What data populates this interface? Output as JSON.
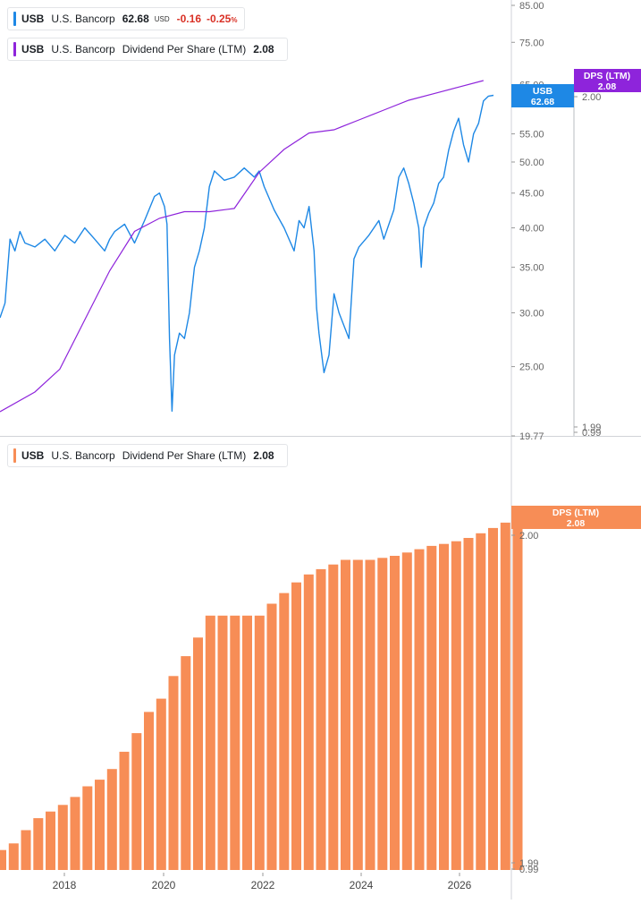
{
  "colors": {
    "price": "#1e88e5",
    "dps_line": "#8e24db",
    "dps_bar": "#f78d56",
    "negative": "#d93025",
    "axis": "#666666"
  },
  "legends": {
    "price": {
      "ticker": "USB",
      "name": "U.S. Bancorp",
      "value": "62.68",
      "currency": "USD",
      "change": "-0.16",
      "change_pct": "-0.25",
      "pct_sign": "%"
    },
    "dps_top": {
      "ticker": "USB",
      "name": "U.S. Bancorp",
      "metric": "Dividend Per Share (LTM)",
      "value": "2.08"
    },
    "dps_bottom": {
      "ticker": "USB",
      "name": "U.S. Bancorp",
      "metric": "Dividend Per Share (LTM)",
      "value": "2.08"
    }
  },
  "badges": {
    "price": {
      "title": "USB",
      "value": "62.68"
    },
    "dps_top": {
      "title": "DPS (LTM)",
      "value": "2.08"
    },
    "dps_bottom": {
      "title": "DPS (LTM)",
      "value": "2.08"
    }
  },
  "chart_data": [
    {
      "type": "line",
      "title": "",
      "axis": "log",
      "y_range": [
        19.77,
        85.0
      ],
      "y_ticks": [
        "85.00",
        "75.00",
        "65.00",
        "55.00",
        "50.00",
        "45.00",
        "40.00",
        "35.00",
        "30.00",
        "25.00",
        "19.77"
      ],
      "secondary_ticks": [
        "2.00",
        "1.99",
        "0.99"
      ],
      "series": [
        {
          "name": "USB",
          "x": [
            2016.8,
            2016.9,
            2017.0,
            2017.1,
            2017.2,
            2017.3,
            2017.5,
            2017.7,
            2017.9,
            2018.0,
            2018.1,
            2018.3,
            2018.5,
            2018.7,
            2018.9,
            2019.0,
            2019.1,
            2019.3,
            2019.5,
            2019.7,
            2019.9,
            2020.0,
            2020.1,
            2020.15,
            2020.2,
            2020.25,
            2020.3,
            2020.4,
            2020.5,
            2020.6,
            2020.7,
            2020.8,
            2020.9,
            2021.0,
            2021.1,
            2021.3,
            2021.5,
            2021.7,
            2021.9,
            2022.0,
            2022.1,
            2022.3,
            2022.5,
            2022.7,
            2022.8,
            2022.9,
            2023.0,
            2023.1,
            2023.15,
            2023.2,
            2023.3,
            2023.4,
            2023.5,
            2023.6,
            2023.8,
            2023.9,
            2024.0,
            2024.2,
            2024.4,
            2024.5,
            2024.7,
            2024.8,
            2024.9,
            2025.0,
            2025.1,
            2025.2,
            2025.25,
            2025.3,
            2025.4,
            2025.5,
            2025.6,
            2025.7,
            2025.8,
            2025.9,
            2026.0,
            2026.1,
            2026.2,
            2026.3,
            2026.4,
            2026.5,
            2026.6,
            2026.7
          ],
          "values": [
            29.5,
            31.0,
            38.5,
            37.0,
            39.5,
            38.0,
            37.5,
            38.5,
            37.0,
            38.0,
            39.0,
            38.0,
            40.0,
            38.5,
            37.0,
            38.5,
            39.5,
            40.5,
            38.0,
            41.0,
            44.5,
            45.0,
            43.0,
            40.5,
            27.5,
            21.5,
            26.0,
            28.0,
            27.5,
            30.0,
            35.0,
            37.0,
            40.0,
            46.0,
            48.5,
            47.0,
            47.5,
            49.0,
            47.5,
            48.5,
            46.0,
            42.5,
            40.0,
            37.0,
            41.0,
            40.0,
            43.0,
            37.0,
            30.5,
            28.0,
            24.5,
            26.0,
            32.0,
            30.0,
            27.5,
            36.0,
            37.5,
            39.0,
            41.0,
            38.5,
            42.5,
            47.5,
            49.0,
            46.5,
            43.5,
            40.0,
            35.0,
            40.0,
            42.0,
            43.5,
            46.5,
            47.5,
            52.0,
            55.5,
            58.0,
            53.0,
            50.0,
            55.0,
            57.0,
            61.5,
            62.5,
            62.68
          ]
        },
        {
          "name": "DPS (LTM)",
          "x": [
            2016.8,
            2017.5,
            2018.0,
            2018.5,
            2019.0,
            2019.5,
            2020.0,
            2020.5,
            2021.0,
            2021.5,
            2022.0,
            2022.5,
            2023.0,
            2023.5,
            2024.0,
            2024.5,
            2025.0,
            2025.5,
            2026.0,
            2026.5
          ],
          "values": [
            1.07,
            1.13,
            1.2,
            1.35,
            1.5,
            1.62,
            1.66,
            1.68,
            1.68,
            1.69,
            1.8,
            1.87,
            1.92,
            1.93,
            1.96,
            1.99,
            2.02,
            2.04,
            2.06,
            2.08
          ]
        }
      ]
    },
    {
      "type": "bar",
      "title": "",
      "y_ticks": [
        "2.00",
        "1.99",
        "0.99"
      ],
      "x_ticks": [
        "2018",
        "2020",
        "2022",
        "2024",
        "2026"
      ],
      "series": [
        {
          "name": "DPS (LTM)",
          "values": [
            0.3,
            0.4,
            0.6,
            0.78,
            0.88,
            0.98,
            1.1,
            1.26,
            1.36,
            1.52,
            1.78,
            2.06,
            2.38,
            2.58,
            2.92,
            3.22,
            3.5,
            3.83,
            3.83,
            3.83,
            3.83,
            3.83,
            4.01,
            4.17,
            4.33,
            4.45,
            4.53,
            4.6,
            4.67,
            4.67,
            4.67,
            4.7,
            4.73,
            4.78,
            4.83,
            4.88,
            4.91,
            4.95,
            5.0,
            5.07,
            5.15,
            5.23,
            5.31
          ]
        }
      ]
    }
  ]
}
